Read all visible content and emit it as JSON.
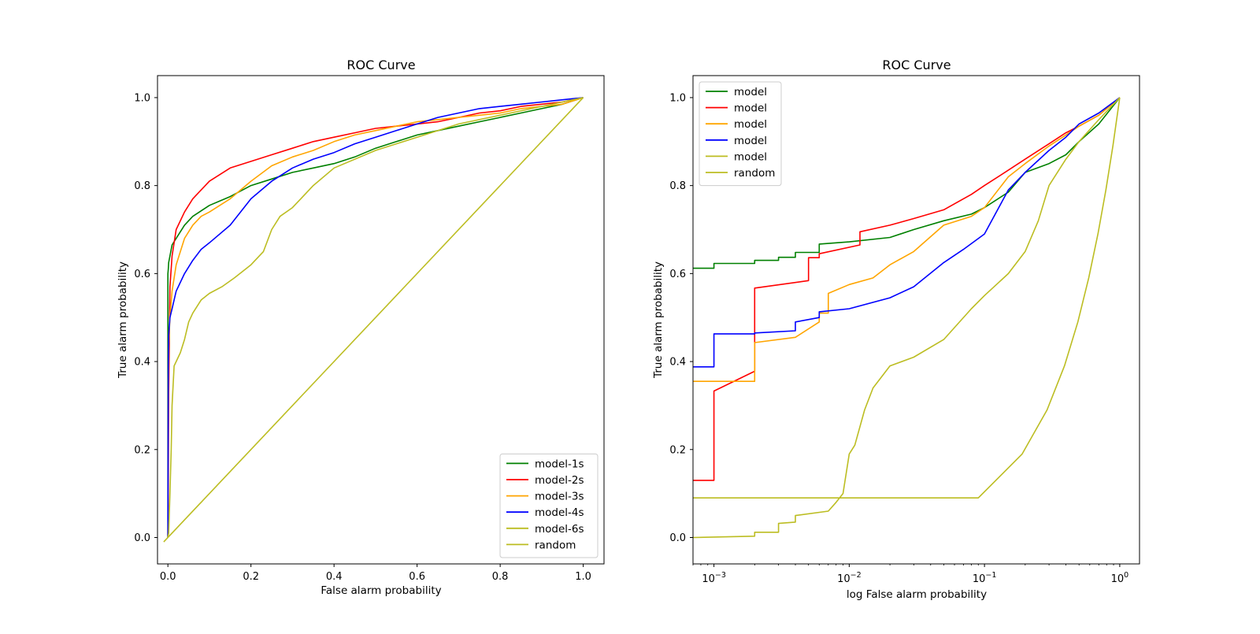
{
  "chart_data": [
    {
      "type": "line",
      "title": "ROC Curve",
      "xlabel": "False alarm probability",
      "ylabel": "True alarm probability",
      "xscale": "linear",
      "xlim": [
        -0.025,
        1.05
      ],
      "ylim": [
        -0.06,
        1.05
      ],
      "xticks": [
        0.0,
        0.2,
        0.4,
        0.6,
        0.8,
        1.0
      ],
      "xtick_labels": [
        "0.0",
        "0.2",
        "0.4",
        "0.6",
        "0.8",
        "1.0"
      ],
      "yticks": [
        0.0,
        0.2,
        0.4,
        0.6,
        0.8,
        1.0
      ],
      "ytick_labels": [
        "0.0",
        "0.2",
        "0.4",
        "0.6",
        "0.8",
        "1.0"
      ],
      "legend_loc": "lower-right",
      "series": [
        {
          "name": "model-1s",
          "color": "#008000",
          "x": [
            0,
            0,
            0.001,
            0.002,
            0.005,
            0.01,
            0.02,
            0.04,
            0.06,
            0.1,
            0.15,
            0.2,
            0.25,
            0.3,
            0.35,
            0.4,
            0.45,
            0.5,
            0.55,
            0.6,
            0.65,
            0.7,
            0.75,
            0.8,
            0.85,
            0.9,
            0.95,
            1.0
          ],
          "y": [
            0,
            0.6,
            0.61,
            0.625,
            0.64,
            0.665,
            0.68,
            0.71,
            0.73,
            0.755,
            0.775,
            0.8,
            0.815,
            0.83,
            0.84,
            0.85,
            0.865,
            0.885,
            0.9,
            0.915,
            0.925,
            0.935,
            0.945,
            0.955,
            0.965,
            0.975,
            0.985,
            1.0
          ]
        },
        {
          "name": "model-2s",
          "color": "#ff0000",
          "x": [
            0,
            0.001,
            0.002,
            0.005,
            0.01,
            0.02,
            0.04,
            0.06,
            0.08,
            0.1,
            0.15,
            0.2,
            0.25,
            0.3,
            0.35,
            0.4,
            0.45,
            0.5,
            0.55,
            0.6,
            0.65,
            0.7,
            0.75,
            0.8,
            0.85,
            0.9,
            0.95,
            1.0
          ],
          "y": [
            0,
            0.13,
            0.33,
            0.57,
            0.64,
            0.7,
            0.74,
            0.77,
            0.79,
            0.81,
            0.84,
            0.855,
            0.87,
            0.885,
            0.9,
            0.91,
            0.92,
            0.93,
            0.935,
            0.94,
            0.945,
            0.955,
            0.965,
            0.97,
            0.98,
            0.985,
            0.99,
            1.0
          ]
        },
        {
          "name": "model-3s",
          "color": "#ffa500",
          "x": [
            0,
            0.001,
            0.002,
            0.005,
            0.01,
            0.02,
            0.04,
            0.06,
            0.08,
            0.1,
            0.15,
            0.2,
            0.25,
            0.3,
            0.35,
            0.4,
            0.45,
            0.5,
            0.55,
            0.6,
            0.65,
            0.7,
            0.75,
            0.8,
            0.85,
            0.9,
            0.95,
            1.0
          ],
          "y": [
            0,
            0.36,
            0.44,
            0.5,
            0.56,
            0.62,
            0.68,
            0.71,
            0.73,
            0.74,
            0.77,
            0.81,
            0.845,
            0.865,
            0.88,
            0.9,
            0.915,
            0.925,
            0.935,
            0.945,
            0.95,
            0.955,
            0.96,
            0.965,
            0.975,
            0.98,
            0.985,
            1.0
          ]
        },
        {
          "name": "model-4s",
          "color": "#0000ff",
          "x": [
            0,
            0.001,
            0.002,
            0.005,
            0.01,
            0.02,
            0.04,
            0.06,
            0.08,
            0.1,
            0.15,
            0.2,
            0.25,
            0.3,
            0.35,
            0.4,
            0.45,
            0.5,
            0.55,
            0.6,
            0.65,
            0.7,
            0.75,
            0.8,
            0.85,
            0.9,
            0.95,
            1.0
          ],
          "y": [
            0,
            0.39,
            0.46,
            0.5,
            0.52,
            0.56,
            0.6,
            0.63,
            0.655,
            0.67,
            0.71,
            0.77,
            0.81,
            0.84,
            0.86,
            0.875,
            0.895,
            0.91,
            0.925,
            0.94,
            0.955,
            0.965,
            0.975,
            0.98,
            0.985,
            0.99,
            0.995,
            1.0
          ]
        },
        {
          "name": "model-6s",
          "color": "#bcbd22",
          "x": [
            0,
            0.002,
            0.005,
            0.008,
            0.01,
            0.015,
            0.02,
            0.03,
            0.04,
            0.05,
            0.06,
            0.08,
            0.1,
            0.13,
            0.16,
            0.2,
            0.23,
            0.25,
            0.27,
            0.3,
            0.35,
            0.4,
            0.5,
            0.6,
            0.7,
            0.8,
            0.9,
            1.0
          ],
          "y": [
            0,
            0.01,
            0.1,
            0.2,
            0.3,
            0.39,
            0.4,
            0.42,
            0.45,
            0.49,
            0.51,
            0.54,
            0.555,
            0.57,
            0.59,
            0.62,
            0.65,
            0.7,
            0.73,
            0.75,
            0.8,
            0.84,
            0.88,
            0.91,
            0.94,
            0.96,
            0.98,
            1.0
          ]
        },
        {
          "name": "random",
          "color": "#bcbd22",
          "x": [
            -0.01,
            1.0
          ],
          "y": [
            -0.01,
            1.0
          ]
        }
      ]
    },
    {
      "type": "line",
      "title": "ROC Curve",
      "xlabel": "log False alarm probability",
      "ylabel": "True alarm probability",
      "xscale": "log",
      "xlim": [
        0.0007,
        1.4
      ],
      "ylim": [
        -0.06,
        1.05
      ],
      "xticks": [
        0.001,
        0.01,
        0.1,
        1
      ],
      "xtick_labels": [
        "10",
        "10",
        "10",
        "10"
      ],
      "xtick_exponents": [
        "−3",
        "−2",
        "−1",
        "0"
      ],
      "yticks": [
        0.0,
        0.2,
        0.4,
        0.6,
        0.8,
        1.0
      ],
      "ytick_labels": [
        "0.0",
        "0.2",
        "0.4",
        "0.6",
        "0.8",
        "1.0"
      ],
      "legend_loc": "upper-left",
      "series": [
        {
          "name": "model",
          "color": "#008000",
          "x": [
            0.0007,
            0.001,
            0.001,
            0.002,
            0.002,
            0.003,
            0.003,
            0.004,
            0.004,
            0.006,
            0.006,
            0.01,
            0.02,
            0.03,
            0.05,
            0.08,
            0.1,
            0.15,
            0.2,
            0.3,
            0.4,
            0.5,
            0.7,
            1.0
          ],
          "y": [
            0.612,
            0.612,
            0.623,
            0.623,
            0.63,
            0.63,
            0.637,
            0.637,
            0.648,
            0.648,
            0.667,
            0.672,
            0.682,
            0.7,
            0.72,
            0.735,
            0.75,
            0.785,
            0.83,
            0.85,
            0.87,
            0.9,
            0.94,
            1.0
          ]
        },
        {
          "name": "model",
          "color": "#ff0000",
          "x": [
            0.0007,
            0.001,
            0.001,
            0.002,
            0.002,
            0.005,
            0.005,
            0.006,
            0.006,
            0.012,
            0.012,
            0.02,
            0.03,
            0.05,
            0.08,
            0.1,
            0.15,
            0.2,
            0.3,
            0.4,
            0.5,
            0.7,
            1.0
          ],
          "y": [
            0.13,
            0.13,
            0.333,
            0.378,
            0.567,
            0.584,
            0.636,
            0.636,
            0.645,
            0.665,
            0.695,
            0.71,
            0.725,
            0.745,
            0.78,
            0.8,
            0.835,
            0.86,
            0.895,
            0.92,
            0.935,
            0.96,
            1.0
          ]
        },
        {
          "name": "model",
          "color": "#ffa500",
          "x": [
            0.0007,
            0.002,
            0.002,
            0.004,
            0.006,
            0.006,
            0.007,
            0.007,
            0.01,
            0.015,
            0.02,
            0.03,
            0.05,
            0.08,
            0.1,
            0.15,
            0.2,
            0.3,
            0.4,
            0.5,
            0.7,
            1.0
          ],
          "y": [
            0.355,
            0.355,
            0.443,
            0.455,
            0.49,
            0.51,
            0.51,
            0.555,
            0.575,
            0.59,
            0.62,
            0.65,
            0.71,
            0.73,
            0.75,
            0.82,
            0.85,
            0.89,
            0.915,
            0.935,
            0.96,
            1.0
          ]
        },
        {
          "name": "model",
          "color": "#0000ff",
          "x": [
            0.0007,
            0.001,
            0.001,
            0.002,
            0.002,
            0.004,
            0.004,
            0.006,
            0.006,
            0.01,
            0.02,
            0.03,
            0.05,
            0.07,
            0.1,
            0.15,
            0.2,
            0.3,
            0.4,
            0.5,
            0.7,
            1.0
          ],
          "y": [
            0.388,
            0.388,
            0.463,
            0.463,
            0.465,
            0.47,
            0.49,
            0.5,
            0.513,
            0.52,
            0.545,
            0.57,
            0.625,
            0.655,
            0.69,
            0.79,
            0.83,
            0.88,
            0.91,
            0.94,
            0.965,
            1.0
          ]
        },
        {
          "name": "model",
          "color": "#bcbd22",
          "x": [
            0.0007,
            0.002,
            0.002,
            0.003,
            0.003,
            0.004,
            0.004,
            0.007,
            0.008,
            0.009,
            0.01,
            0.011,
            0.013,
            0.015,
            0.02,
            0.03,
            0.05,
            0.08,
            0.1,
            0.15,
            0.2,
            0.25,
            0.3,
            0.4,
            0.5,
            0.7,
            1.0
          ],
          "y": [
            0.0,
            0.003,
            0.012,
            0.012,
            0.032,
            0.035,
            0.05,
            0.06,
            0.08,
            0.1,
            0.19,
            0.21,
            0.29,
            0.34,
            0.39,
            0.41,
            0.45,
            0.52,
            0.55,
            0.6,
            0.65,
            0.72,
            0.8,
            0.86,
            0.9,
            0.95,
            1.0
          ]
        },
        {
          "name": "random",
          "color": "#bcbd22",
          "x": [
            0.0007,
            0.09,
            0.19,
            0.29,
            0.39,
            0.49,
            0.59,
            0.69,
            0.79,
            0.89,
            1.0
          ],
          "y": [
            0.09,
            0.09,
            0.19,
            0.29,
            0.39,
            0.49,
            0.59,
            0.69,
            0.79,
            0.89,
            1.0
          ]
        }
      ]
    }
  ]
}
